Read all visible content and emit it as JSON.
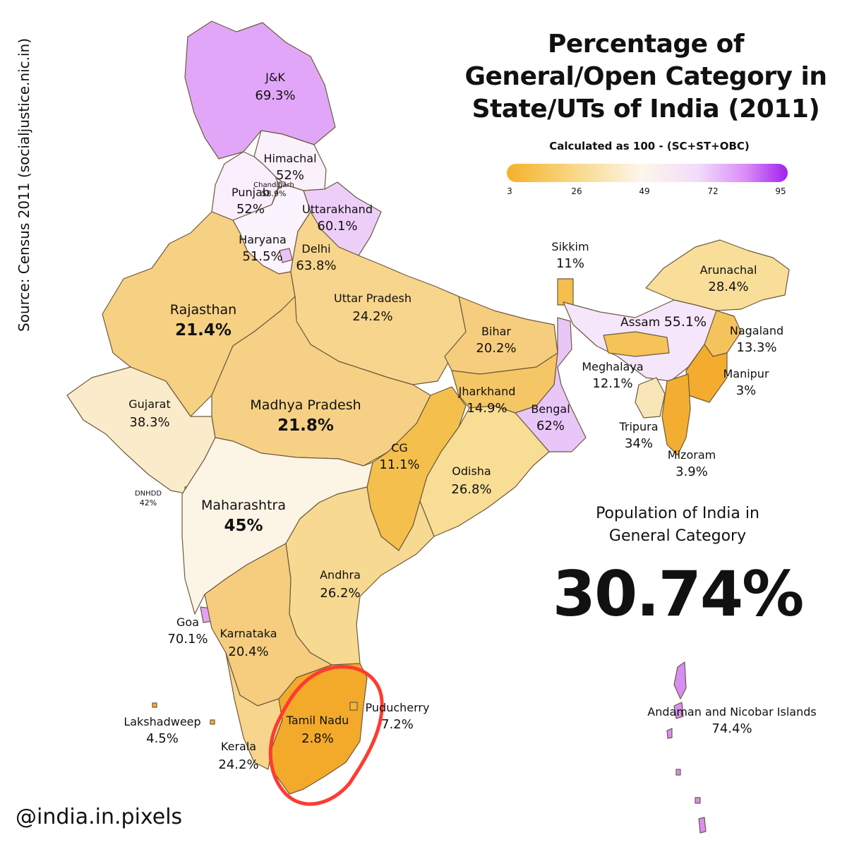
{
  "title": [
    "Percentage of",
    "General/Open Category in",
    "State/UTs of India (2011)"
  ],
  "subtitle": "Calculated as 100 - (SC+ST+OBC)",
  "legend": {
    "ticks": [
      "3",
      "26",
      "49",
      "72",
      "95"
    ],
    "colors": [
      "#f5b12a",
      "#f8d98a",
      "#fdf6ea",
      "#f2dcfb",
      "#a020f0"
    ]
  },
  "source": "Source: Census 2011 (socialjustice.nic.in)",
  "summary": {
    "label_line1": "Population of India in",
    "label_line2": "General Category",
    "value": "30.74%"
  },
  "handle": "@india.in.pixels",
  "highlight": {
    "region": "Tamil Nadu",
    "color": "#ff3b30"
  },
  "map_data": {
    "regions": [
      {
        "id": "jk",
        "name": "J&K",
        "value": "69.3%",
        "pct": 69.3,
        "color": "#e1a6f8"
      },
      {
        "id": "himachal",
        "name": "Himachal",
        "value": "52%",
        "pct": 52,
        "color": "#fbf1fd"
      },
      {
        "id": "chandigarh",
        "name": "Chandigarh",
        "value": "58.9%",
        "pct": 58.9,
        "color": "#f3ddfb"
      },
      {
        "id": "punjab",
        "name": "Punjab",
        "value": "52%",
        "pct": 52,
        "color": "#faeefd"
      },
      {
        "id": "uttarakhand",
        "name": "Uttarakhand",
        "value": "60.1%",
        "pct": 60.1,
        "color": "#edcef9"
      },
      {
        "id": "haryana",
        "name": "Haryana",
        "value": "51.5%",
        "pct": 51.5,
        "color": "#fbf3fd"
      },
      {
        "id": "delhi",
        "name": "Delhi",
        "value": "63.8%",
        "pct": 63.8,
        "color": "#e8c2f8"
      },
      {
        "id": "rajasthan",
        "name": "Rajasthan",
        "value": "21.4%",
        "pct": 21.4,
        "color": "#f6d083"
      },
      {
        "id": "up",
        "name": "Uttar Pradesh",
        "value": "24.2%",
        "pct": 24.2,
        "color": "#f7d58c"
      },
      {
        "id": "bihar",
        "name": "Bihar",
        "value": "20.2%",
        "pct": 20.2,
        "color": "#f6cd7e"
      },
      {
        "id": "sikkim",
        "name": "Sikkim",
        "value": "11%",
        "pct": 11,
        "color": "#f4bf4d"
      },
      {
        "id": "arunachal",
        "name": "Arunachal",
        "value": "28.4%",
        "pct": 28.4,
        "color": "#f8de98"
      },
      {
        "id": "assam",
        "name": "Assam",
        "value": "55.1%",
        "pct": 55.1,
        "color": "#f6e6fb"
      },
      {
        "id": "nagaland",
        "name": "Nagaland",
        "value": "13.3%",
        "pct": 13.3,
        "color": "#f4c35c"
      },
      {
        "id": "meghalaya",
        "name": "Meghalaya",
        "value": "12.1%",
        "pct": 12.1,
        "color": "#f5c357"
      },
      {
        "id": "manipur",
        "name": "Manipur",
        "value": "3%",
        "pct": 3,
        "color": "#f3ac2e"
      },
      {
        "id": "tripura",
        "name": "Tripura",
        "value": "34%",
        "pct": 34,
        "color": "#f9e6b8"
      },
      {
        "id": "mizoram",
        "name": "Mizoram",
        "value": "3.9%",
        "pct": 3.9,
        "color": "#f3ad30"
      },
      {
        "id": "gujarat",
        "name": "Gujarat",
        "value": "38.3%",
        "pct": 38.3,
        "color": "#faebca"
      },
      {
        "id": "mp",
        "name": "Madhya Pradesh",
        "value": "21.8%",
        "pct": 21.8,
        "color": "#f6d185"
      },
      {
        "id": "jharkhand",
        "name": "Jharkhand",
        "value": "14.9%",
        "pct": 14.9,
        "color": "#f5c665"
      },
      {
        "id": "bengal",
        "name": "Bengal",
        "value": "62%",
        "pct": 62,
        "color": "#e9c6f8"
      },
      {
        "id": "cg",
        "name": "CG",
        "value": "11.1%",
        "pct": 11.1,
        "color": "#f4bf4d"
      },
      {
        "id": "odisha",
        "name": "Odisha",
        "value": "26.8%",
        "pct": 26.8,
        "color": "#f8dd94"
      },
      {
        "id": "dnhdd",
        "name": "DNHDD",
        "value": "42%",
        "pct": 42,
        "color": "#fbefd9"
      },
      {
        "id": "maharashtra",
        "name": "Maharashtra",
        "value": "45%",
        "pct": 45,
        "color": "#fcf5e6"
      },
      {
        "id": "andhra",
        "name": "Andhra",
        "value": "26.2%",
        "pct": 26.2,
        "color": "#f7d991"
      },
      {
        "id": "goa",
        "name": "Goa",
        "value": "70.1%",
        "pct": 70.1,
        "color": "#dfa3f6"
      },
      {
        "id": "karnataka",
        "name": "Karnataka",
        "value": "20.4%",
        "pct": 20.4,
        "color": "#f6cd7f"
      },
      {
        "id": "lakshadweep",
        "name": "Lakshadweep",
        "value": "4.5%",
        "pct": 4.5,
        "color": "#f3b032"
      },
      {
        "id": "kerala",
        "name": "Kerala",
        "value": "24.2%",
        "pct": 24.2,
        "color": "#f7d58c"
      },
      {
        "id": "tamilnadu",
        "name": "Tamil Nadu",
        "value": "2.8%",
        "pct": 2.8,
        "color": "#f3aa2a"
      },
      {
        "id": "puducherry",
        "name": "Puducherry",
        "value": "7.2%",
        "pct": 7.2,
        "color": "#f4b53f"
      },
      {
        "id": "andaman",
        "name": "Andaman and Nicobar Islands",
        "value": "74.4%",
        "pct": 74.4,
        "color": "#d78ef3"
      }
    ]
  }
}
